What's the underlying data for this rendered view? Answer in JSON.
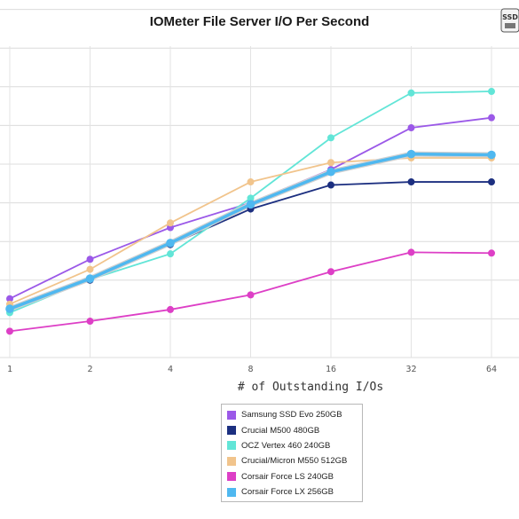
{
  "chart_data": {
    "type": "line",
    "title": "IOMeter File Server I/O Per Second",
    "xlabel": "# of Outstanding I/Os",
    "ylabel": "",
    "categories": [
      "1",
      "2",
      "4",
      "8",
      "16",
      "32",
      "64"
    ],
    "ylim": [
      0,
      60000
    ],
    "yticks": [
      0,
      5000,
      10000,
      15000,
      20000,
      25000,
      30000,
      35000,
      40000,
      45000
    ],
    "grid": true,
    "legend_position": "bottom-center",
    "series": [
      {
        "name": "Samsung SSD Evo 250GB",
        "color": "#9b59e8",
        "values": [
          7600,
          12700,
          16800,
          20000,
          24300,
          29700,
          31000
        ]
      },
      {
        "name": "Crucial M500 480GB",
        "color": "#1c2f80",
        "values": [
          6200,
          10000,
          14600,
          19200,
          22300,
          22700,
          22700
        ]
      },
      {
        "name": "OCZ Vertex 460 240GB",
        "color": "#62e5d7",
        "values": [
          5800,
          10100,
          13400,
          20600,
          28400,
          34200,
          34400
        ]
      },
      {
        "name": "Crucial/Micron M550 512GB",
        "color": "#f1c48c",
        "values": [
          6900,
          11400,
          17400,
          22700,
          25200,
          25800,
          25800
        ]
      },
      {
        "name": "Corsair Force LS 240GB",
        "color": "#dd3fc6",
        "values": [
          3400,
          4700,
          6200,
          8100,
          11100,
          13600,
          13500
        ]
      },
      {
        "name": "Corsair Force LX 256GB",
        "color": "#4fb8f0",
        "values": [
          6300,
          10200,
          14800,
          19800,
          24000,
          26300,
          26200
        ]
      }
    ]
  },
  "logo_text": "SSD"
}
